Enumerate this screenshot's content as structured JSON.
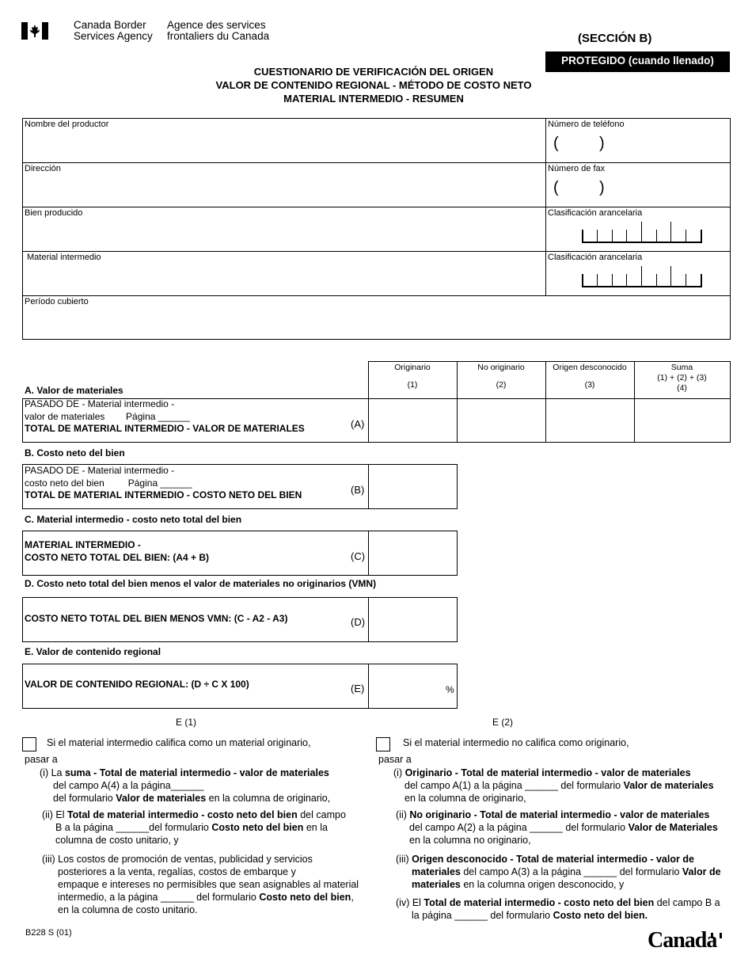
{
  "header": {
    "agency_en": [
      "Canada Border",
      "Services Agency"
    ],
    "agency_fr": [
      "Agence des services",
      "frontaliers du Canada"
    ],
    "section": "(SECCIÓN B)",
    "protected": "PROTEGIDO (cuando llenado)",
    "title_lines": [
      "CUESTIONARIO DE VERIFICACIÓN DEL ORIGEN",
      "VALOR DE CONTENIDO REGIONAL - MÉTODO DE COSTO NETO",
      "MATERIAL INTERMEDIO - RESUMEN"
    ]
  },
  "info": {
    "producer_name": "Nombre del productor",
    "phone": "Número de teléfono",
    "address": "Dirección",
    "fax": "Número de fax",
    "good": "Bien producido",
    "tariff1": "Clasificación arancelaria",
    "intermediate": "Material intermedio",
    "tariff2": "Clasificación arancelaria",
    "period": "Período cubierto",
    "paren_open": "(",
    "paren_close": ")"
  },
  "section_a": {
    "heading": "A.  Valor de materiales",
    "columns": [
      {
        "label": "Originario",
        "num": "(1)"
      },
      {
        "label": "No originario",
        "num": "(2)"
      },
      {
        "label": "Origen desconocido",
        "num": "(3)"
      },
      {
        "label": "Suma",
        "sub": "(1) + (2) + (3)",
        "num": "(4)"
      }
    ],
    "line1": "PASADO DE - Material intermedio -",
    "line2": "valor de materiales        Página ______",
    "line3": "TOTAL DE MATERIAL INTERMEDIO - VALOR DE MATERIALES",
    "code": "(A)"
  },
  "section_b": {
    "heading": "B. Costo neto del bien",
    "line1": "PASADO DE - Material intermedio -",
    "line2": "costo neto del bien         Página ______",
    "line3": "TOTAL DE MATERIAL INTERMEDIO - COSTO NETO DEL BIEN",
    "code": "(B)"
  },
  "section_c": {
    "heading": "C.  Material intermedio - costo neto total del bien",
    "line1": "MATERIAL INTERMEDIO -",
    "line2": "COSTO NETO TOTAL DEL BIEN:  (A4 + B)",
    "code": "(C)"
  },
  "section_d": {
    "heading": "D. Costo neto total del bien menos el valor de materiales no originarios (VMN)",
    "line1": "COSTO NETO TOTAL DEL BIEN MENOS VMN:  (C - A2 - A3)",
    "code": "(D)"
  },
  "section_e": {
    "heading": "E.  Valor de contenido regional",
    "line1": "VALOR DE CONTENIDO REGIONAL:  (D ÷ C X 100)",
    "code": "(E)",
    "unit": "%"
  },
  "e1": {
    "label": "E  (1)",
    "intro": "Si el material intermedio califica como un material originario,",
    "pasar": "pasar a",
    "i": [
      "(i)  La ",
      "suma - Total de material intermedio - valor de materiales",
      "del campo A(4) a la página______",
      "del formulario ",
      "Valor de materiales",
      " en la columna de originario,"
    ],
    "ii": [
      "(ii) El ",
      "Total de material intermedio - costo neto del bien",
      " del campo",
      "B a la página ______del formulario ",
      "Costo neto del bien",
      " en la",
      "columna de costo unitario, y"
    ],
    "iii": [
      "(iii)  Los costos de promoción de ventas, publicidad y servicios",
      "posteriores a la venta, regalías, costos de embarque y",
      "empaque e intereses no permisibles que sean asignables al material",
      "intermedio, a la página ______ del formulario ",
      "Costo neto del bien",
      ",",
      "en la columna de costo unitario."
    ]
  },
  "e2": {
    "label": "E  (2)",
    "intro": "Si el material intermedio no califica como originario,",
    "pasar": "pasar a",
    "i": [
      "(i) ",
      "Originario - Total de material intermedio - valor de materiales",
      "del campo A(1) a la página ______ del formulario ",
      "Valor de materiales",
      "en la columna de originario,"
    ],
    "ii": [
      "(ii) ",
      "No originario - Total de material intermedio - valor de materiales",
      "del campo A(2) a la página ______ del formulario ",
      "Valor de Materiales",
      "en la columna no originario,"
    ],
    "iii": [
      "(iii) ",
      "Origen desconocido - Total de material intermedio - valor de",
      "materiales",
      " del campo A(3) a la página ______ del formulario ",
      "Valor de",
      "materiales",
      " en la columna origen desconocido, y"
    ],
    "iv": [
      "(iv) El ",
      "Total de material intermedio - costo neto del bien",
      " del campo B a",
      "la página ______ del formulario ",
      "Costo neto del bien."
    ]
  },
  "footer": {
    "form_number": "B228 S (01)",
    "wordmark": "Canada"
  }
}
